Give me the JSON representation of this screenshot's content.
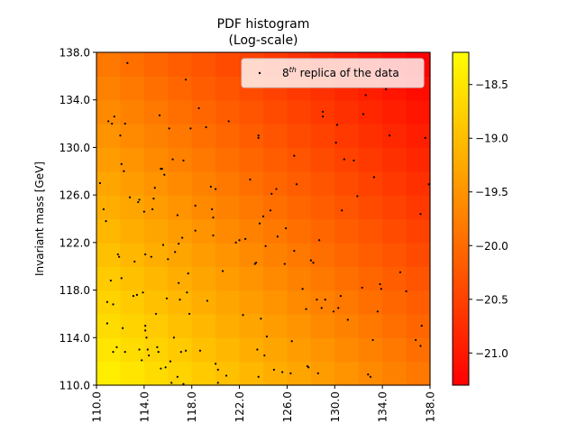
{
  "chart_data": {
    "type": "heatmap",
    "title": "PDF histogram",
    "subtitle": "(Log-scale)",
    "xlabel": "",
    "ylabel": "Invariant mass [GeV]",
    "xlim": [
      110.0,
      138.0
    ],
    "ylim": [
      110.0,
      138.0
    ],
    "x_ticks": [
      "110.0",
      "114.0",
      "118.0",
      "122.0",
      "126.0",
      "130.0",
      "134.0",
      "138.0"
    ],
    "y_ticks": [
      "110.0",
      "114.0",
      "118.0",
      "122.0",
      "126.0",
      "130.0",
      "134.0",
      "138.0"
    ],
    "colorbar": {
      "range": [
        -21.3,
        -18.2
      ],
      "ticks": [
        "-18.5",
        "-19.0",
        "-19.5",
        "-20.0",
        "-20.5",
        "-21.0"
      ],
      "colormap": "autumn_r",
      "low_color": "#ff0000",
      "high_color": "#ffff00"
    },
    "heatmap": {
      "grid_bins": 14,
      "model": "log-density decreasing linearly with x and y",
      "value_at_origin": -18.3,
      "slope_x": -0.055,
      "slope_y": -0.055
    },
    "series": [
      {
        "name": "8th replica of the data",
        "type": "scatter",
        "color": "#000000",
        "points": [
          [
            110.3,
            127.0
          ],
          [
            110.6,
            124.8
          ],
          [
            110.8,
            123.8
          ],
          [
            110.9,
            117.0
          ],
          [
            110.9,
            115.2
          ],
          [
            111.0,
            132.2
          ],
          [
            111.2,
            118.8
          ],
          [
            111.3,
            132.0
          ],
          [
            111.4,
            112.8
          ],
          [
            111.4,
            116.8
          ],
          [
            111.5,
            132.6
          ],
          [
            111.7,
            113.2
          ],
          [
            111.8,
            121.0
          ],
          [
            111.9,
            120.8
          ],
          [
            112.0,
            131.0
          ],
          [
            112.1,
            128.6
          ],
          [
            112.1,
            119.0
          ],
          [
            112.2,
            114.8
          ],
          [
            112.3,
            128.0
          ],
          [
            112.4,
            112.8
          ],
          [
            112.4,
            132.0
          ],
          [
            112.6,
            137.1
          ],
          [
            112.8,
            125.8
          ],
          [
            113.1,
            117.5
          ],
          [
            113.2,
            120.4
          ],
          [
            113.4,
            117.6
          ],
          [
            113.5,
            125.4
          ],
          [
            113.6,
            125.6
          ],
          [
            113.6,
            113.0
          ],
          [
            113.8,
            112.1
          ],
          [
            113.9,
            117.8
          ],
          [
            114.0,
            124.6
          ],
          [
            114.1,
            121.0
          ],
          [
            114.1,
            115.0
          ],
          [
            114.1,
            114.6
          ],
          [
            114.2,
            114.0
          ],
          [
            114.3,
            113.0
          ],
          [
            114.4,
            112.5
          ],
          [
            114.6,
            120.8
          ],
          [
            114.7,
            124.8
          ],
          [
            114.8,
            125.7
          ],
          [
            114.9,
            126.6
          ],
          [
            115.0,
            116.0
          ],
          [
            115.1,
            113.2
          ],
          [
            115.2,
            112.8
          ],
          [
            115.3,
            132.7
          ],
          [
            115.4,
            111.4
          ],
          [
            115.4,
            128.2
          ],
          [
            115.5,
            128.2
          ],
          [
            115.6,
            121.8
          ],
          [
            115.7,
            127.7
          ],
          [
            115.8,
            111.5
          ],
          [
            115.9,
            117.3
          ],
          [
            116.0,
            120.6
          ],
          [
            116.1,
            131.6
          ],
          [
            116.2,
            112.0
          ],
          [
            116.3,
            110.2
          ],
          [
            116.4,
            129.0
          ],
          [
            116.5,
            114.0
          ],
          [
            116.6,
            121.2
          ],
          [
            116.8,
            124.3
          ],
          [
            116.8,
            110.7
          ],
          [
            116.9,
            121.9
          ],
          [
            116.9,
            118.6
          ],
          [
            117.0,
            117.2
          ],
          [
            117.1,
            112.8
          ],
          [
            117.2,
            122.4
          ],
          [
            117.3,
            128.9
          ],
          [
            117.3,
            110.1
          ],
          [
            117.5,
            112.9
          ],
          [
            117.5,
            135.7
          ],
          [
            117.6,
            117.8
          ],
          [
            117.7,
            119.4
          ],
          [
            117.8,
            116.0
          ],
          [
            117.9,
            131.6
          ],
          [
            118.3,
            123.0
          ],
          [
            118.3,
            125.1
          ],
          [
            118.6,
            133.3
          ],
          [
            118.7,
            112.9
          ],
          [
            119.2,
            131.7
          ],
          [
            119.3,
            117.1
          ],
          [
            119.6,
            126.7
          ],
          [
            119.7,
            124.8
          ],
          [
            119.8,
            124.1
          ],
          [
            119.8,
            122.6
          ],
          [
            120.0,
            126.5
          ],
          [
            120.0,
            111.8
          ],
          [
            120.2,
            111.3
          ],
          [
            120.2,
            110.2
          ],
          [
            120.6,
            119.6
          ],
          [
            120.9,
            110.8
          ],
          [
            121.1,
            132.2
          ],
          [
            121.7,
            122.0
          ],
          [
            122.0,
            122.2
          ],
          [
            122.3,
            115.9
          ],
          [
            122.5,
            122.3
          ],
          [
            122.9,
            127.3
          ],
          [
            123.3,
            120.2
          ],
          [
            123.4,
            120.3
          ],
          [
            123.5,
            113.0
          ],
          [
            123.6,
            131.0
          ],
          [
            123.6,
            130.8
          ],
          [
            123.6,
            110.7
          ],
          [
            123.7,
            123.6
          ],
          [
            123.8,
            115.6
          ],
          [
            124.0,
            124.2
          ],
          [
            124.1,
            112.5
          ],
          [
            124.2,
            121.7
          ],
          [
            124.3,
            114.1
          ],
          [
            124.6,
            124.7
          ],
          [
            124.7,
            126.1
          ],
          [
            124.9,
            111.3
          ],
          [
            125.1,
            126.5
          ],
          [
            125.2,
            122.5
          ],
          [
            125.6,
            111.1
          ],
          [
            125.8,
            120.2
          ],
          [
            125.9,
            123.2
          ],
          [
            126.3,
            111.0
          ],
          [
            126.4,
            113.7
          ],
          [
            126.6,
            129.3
          ],
          [
            126.6,
            121.3
          ],
          [
            126.8,
            126.9
          ],
          [
            127.3,
            118.1
          ],
          [
            127.6,
            116.4
          ],
          [
            127.7,
            111.6
          ],
          [
            127.8,
            111.5
          ],
          [
            128.0,
            120.5
          ],
          [
            128.2,
            120.3
          ],
          [
            128.5,
            117.2
          ],
          [
            128.6,
            111.0
          ],
          [
            128.7,
            122.2
          ],
          [
            128.9,
            116.5
          ],
          [
            129.0,
            133.0
          ],
          [
            129.0,
            132.6
          ],
          [
            129.2,
            117.2
          ],
          [
            129.9,
            116.2
          ],
          [
            130.1,
            130.4
          ],
          [
            130.2,
            131.9
          ],
          [
            130.3,
            116.5
          ],
          [
            130.5,
            117.5
          ],
          [
            130.6,
            124.7
          ],
          [
            130.8,
            129.0
          ],
          [
            131.1,
            115.5
          ],
          [
            131.6,
            128.9
          ],
          [
            131.9,
            125.9
          ],
          [
            132.3,
            118.2
          ],
          [
            132.4,
            132.8
          ],
          [
            132.6,
            134.4
          ],
          [
            132.8,
            110.9
          ],
          [
            133.0,
            110.7
          ],
          [
            133.2,
            113.8
          ],
          [
            133.3,
            127.5
          ],
          [
            133.6,
            116.2
          ],
          [
            133.8,
            118.5
          ],
          [
            133.9,
            118.1
          ],
          [
            134.3,
            134.9
          ],
          [
            134.6,
            131.0
          ],
          [
            135.5,
            119.5
          ],
          [
            136.0,
            117.9
          ],
          [
            136.8,
            113.8
          ],
          [
            137.2,
            113.3
          ],
          [
            137.2,
            124.4
          ],
          [
            137.3,
            115.0
          ],
          [
            137.6,
            130.8
          ],
          [
            137.9,
            126.9
          ]
        ]
      }
    ],
    "legend": {
      "position": "top-right",
      "label_prefix": "8",
      "label_sup": "th",
      "label_suffix": " replica of the data"
    }
  }
}
